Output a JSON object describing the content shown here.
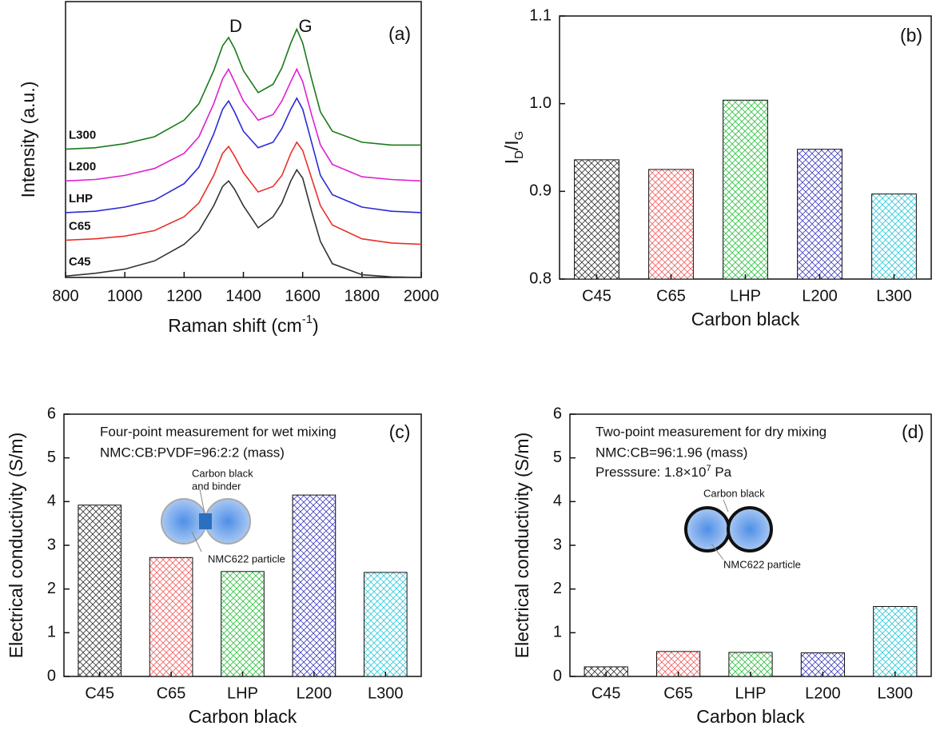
{
  "chart_data": [
    {
      "type": "line",
      "panel_label": "(a)",
      "x_label_parts": [
        "Raman shift (cm",
        "-1",
        ")"
      ],
      "y_label": "Intensity (a.u.)",
      "annotations": [
        "D",
        "G"
      ],
      "x": [
        800,
        900,
        1000,
        1100,
        1200,
        1250,
        1300,
        1330,
        1350,
        1370,
        1400,
        1450,
        1500,
        1530,
        1560,
        1580,
        1600,
        1630,
        1660,
        1700,
        1800,
        1900,
        2000
      ],
      "xlim": [
        800,
        2000
      ],
      "xticks": [
        800,
        1000,
        1200,
        1400,
        1600,
        1800,
        2000
      ],
      "ylim": [
        0,
        10
      ],
      "series": [
        {
          "name": "C45",
          "color": "#333333",
          "values": [
            0.05,
            0.15,
            0.3,
            0.6,
            1.2,
            1.7,
            2.6,
            3.3,
            3.5,
            3.2,
            2.6,
            1.8,
            2.2,
            2.7,
            3.5,
            3.9,
            3.6,
            2.4,
            1.3,
            0.5,
            0.1,
            0.02,
            0
          ]
        },
        {
          "name": "C65",
          "color": "#e8302a",
          "values": [
            1.35,
            1.4,
            1.5,
            1.7,
            2.2,
            2.7,
            3.7,
            4.5,
            4.75,
            4.4,
            3.8,
            3.1,
            3.3,
            3.7,
            4.5,
            4.9,
            4.6,
            3.6,
            2.6,
            1.9,
            1.4,
            1.25,
            1.2
          ]
        },
        {
          "name": "LHP",
          "color": "#2a2ad8",
          "values": [
            2.35,
            2.4,
            2.55,
            2.8,
            3.4,
            4.0,
            5.2,
            6.1,
            6.4,
            6.0,
            5.3,
            4.7,
            4.9,
            5.4,
            6.1,
            6.5,
            6.1,
            4.9,
            3.7,
            3.0,
            2.55,
            2.4,
            2.35
          ]
        },
        {
          "name": "L200",
          "color": "#e020d0",
          "values": [
            3.5,
            3.55,
            3.7,
            3.95,
            4.5,
            5.1,
            6.3,
            7.2,
            7.55,
            7.1,
            6.4,
            5.7,
            5.9,
            6.4,
            7.1,
            7.55,
            7.1,
            5.9,
            4.8,
            4.1,
            3.65,
            3.55,
            3.5
          ]
        },
        {
          "name": "L300",
          "color": "#1a7a1a",
          "values": [
            4.65,
            4.7,
            4.85,
            5.1,
            5.7,
            6.3,
            7.5,
            8.4,
            8.7,
            8.3,
            7.5,
            6.7,
            7.0,
            7.6,
            8.5,
            9.0,
            8.5,
            7.2,
            6.0,
            5.3,
            4.9,
            4.8,
            4.8
          ]
        }
      ]
    },
    {
      "type": "bar",
      "panel_label": "(b)",
      "x_label": "Carbon black",
      "y_label_parts": [
        "I",
        "D",
        "/I",
        "G"
      ],
      "categories": [
        "C45",
        "C65",
        "LHP",
        "L200",
        "L300"
      ],
      "values": [
        0.936,
        0.925,
        1.004,
        0.948,
        0.897
      ],
      "colors": [
        "#333333",
        "#f06060",
        "#30c040",
        "#4040c0",
        "#30c8d8"
      ],
      "ylim": [
        0.8,
        1.1
      ],
      "yticks": [
        0.8,
        0.9,
        {
          "value": 1,
          "label": "1.0"
        },
        1.1
      ]
    },
    {
      "type": "bar",
      "panel_label": "(c)",
      "x_label": "Carbon black",
      "y_label": "Electrical conductivity (S/m)",
      "annotations": [
        "Four-point measurement for wet mixing",
        "NMC:CB:PVDF=96:2:2 (mass)",
        "Carbon black",
        "and binder",
        "NMC622 particle"
      ],
      "categories": [
        "C45",
        "C65",
        "LHP",
        "L200",
        "L300"
      ],
      "values": [
        3.92,
        2.72,
        2.4,
        4.15,
        2.38
      ],
      "colors": [
        "#333333",
        "#f06060",
        "#30c040",
        "#4040c0",
        "#30c8d8"
      ],
      "ylim": [
        0,
        6
      ],
      "yticks": [
        0,
        1,
        2,
        3,
        4,
        5,
        6
      ]
    },
    {
      "type": "bar",
      "panel_label": "(d)",
      "x_label": "Carbon black",
      "y_label": "Electrical conductivity (S/m)",
      "annotations": [
        "Two-point measurement for dry mixing",
        "NMC:CB=96:1.96 (mass)",
        "Carbon black",
        "NMC622 particle"
      ],
      "pressure_parts": [
        "Presssure: 1.8×10",
        "7",
        " Pa"
      ],
      "categories": [
        "C45",
        "C65",
        "LHP",
        "L200",
        "L300"
      ],
      "values": [
        0.22,
        0.57,
        0.55,
        0.54,
        1.6
      ],
      "colors": [
        "#333333",
        "#f06060",
        "#30c040",
        "#4040c0",
        "#30c8d8"
      ],
      "ylim": [
        0,
        6
      ],
      "yticks": [
        0,
        1,
        2,
        3,
        4,
        5,
        6
      ]
    }
  ]
}
